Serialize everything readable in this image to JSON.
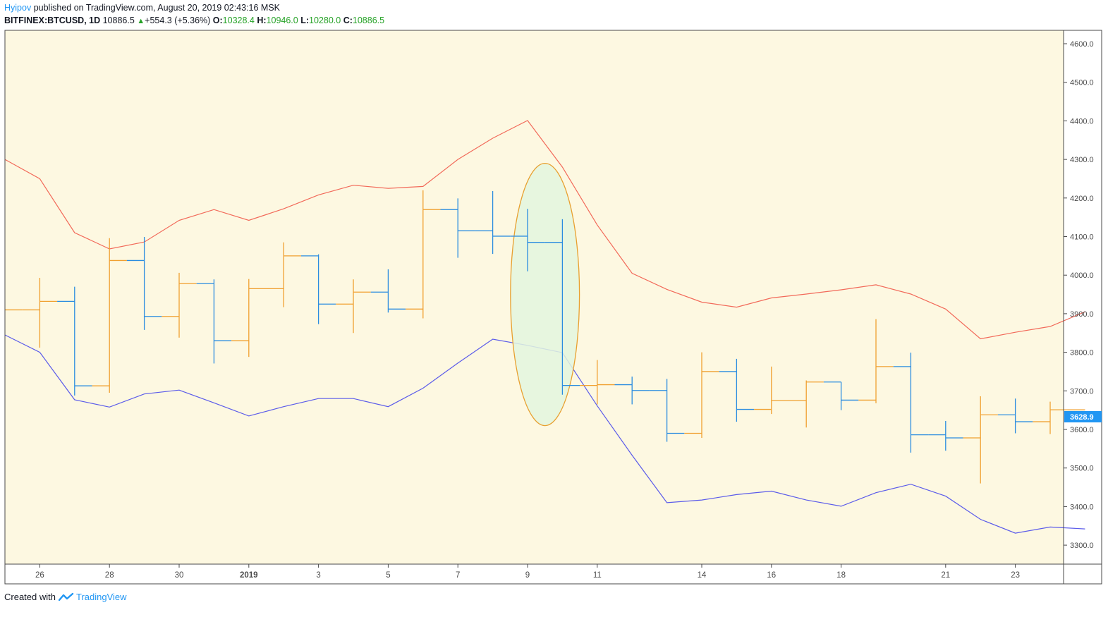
{
  "header": {
    "author": "Hyipov",
    "published": "published on TradingView.com, August 20, 2019 02:43:16 MSK",
    "symbol": "BITFINEX:BTCUSD, 1D",
    "last": "10886.5",
    "change": "+554.3 (+5.36%)",
    "o_label": "O:",
    "o_value": "10328.4",
    "h_label": "H:",
    "h_value": "10946.0",
    "l_label": "L:",
    "l_value": "10280.0",
    "c_label": "C:",
    "c_value": "10886.5"
  },
  "footer": {
    "created_with": "Created with",
    "brand": "TradingView"
  },
  "price_label": "3628.9",
  "colors": {
    "background": "#fdf8e1",
    "up": "#f0a030",
    "down": "#2a8ce0",
    "upper_band": "#f26a5a",
    "lower_band": "#5b5bea",
    "highlight_fill": "#e3f6de",
    "highlight_stroke": "#e8a030",
    "price_label_bg": "#2196f3"
  },
  "chart_data": {
    "type": "ohlc",
    "ylim": [
      3230,
      4640
    ],
    "y_ticks": [
      "4600.0",
      "4500.0",
      "4400.0",
      "4300.0",
      "4200.0",
      "4100.0",
      "4000.0",
      "3900.0",
      "3800.0",
      "3700.0",
      "3600.0",
      "3500.0",
      "3400.0",
      "3300.0"
    ],
    "x_ticks": [
      {
        "i": 1,
        "label": "26"
      },
      {
        "i": 3,
        "label": "28"
      },
      {
        "i": 5,
        "label": "30"
      },
      {
        "i": 7,
        "label": "2019"
      },
      {
        "i": 9,
        "label": "3"
      },
      {
        "i": 11,
        "label": "5"
      },
      {
        "i": 13,
        "label": "7"
      },
      {
        "i": 15,
        "label": "9"
      },
      {
        "i": 17,
        "label": "11"
      },
      {
        "i": 20,
        "label": "14"
      },
      {
        "i": 22,
        "label": "16"
      },
      {
        "i": 24,
        "label": "18"
      },
      {
        "i": 27,
        "label": "21"
      },
      {
        "i": 29,
        "label": "23"
      }
    ],
    "bars": [
      {
        "o": 3910,
        "h": 3910,
        "l": 3910,
        "c": 3910
      },
      {
        "o": 3910,
        "h": 3993,
        "l": 3812,
        "c": 3932
      },
      {
        "o": 3932,
        "h": 3970,
        "l": 3688,
        "c": 3713
      },
      {
        "o": 3713,
        "h": 4096,
        "l": 3695,
        "c": 4038
      },
      {
        "o": 4038,
        "h": 4099,
        "l": 3858,
        "c": 3893
      },
      {
        "o": 3893,
        "h": 4006,
        "l": 3838,
        "c": 3978
      },
      {
        "o": 3978,
        "h": 3989,
        "l": 3771,
        "c": 3830
      },
      {
        "o": 3830,
        "h": 3990,
        "l": 3788,
        "c": 3965
      },
      {
        "o": 3965,
        "h": 4085,
        "l": 3917,
        "c": 4050
      },
      {
        "o": 4050,
        "h": 4054,
        "l": 3873,
        "c": 3925
      },
      {
        "o": 3925,
        "h": 3989,
        "l": 3850,
        "c": 3956
      },
      {
        "o": 3956,
        "h": 4015,
        "l": 3903,
        "c": 3912
      },
      {
        "o": 3912,
        "h": 4220,
        "l": 3888,
        "c": 4170
      },
      {
        "o": 4170,
        "h": 4199,
        "l": 4045,
        "c": 4115
      },
      {
        "o": 4115,
        "h": 4218,
        "l": 4055,
        "c": 4101
      },
      {
        "o": 4101,
        "h": 4172,
        "l": 4010,
        "c": 4085
      },
      {
        "o": 4085,
        "h": 4145,
        "l": 3690,
        "c": 3714
      },
      {
        "o": 3714,
        "h": 3780,
        "l": 3665,
        "c": 3716
      },
      {
        "o": 3716,
        "h": 3737,
        "l": 3665,
        "c": 3701
      },
      {
        "o": 3701,
        "h": 3731,
        "l": 3568,
        "c": 3590
      },
      {
        "o": 3590,
        "h": 3800,
        "l": 3578,
        "c": 3750
      },
      {
        "o": 3750,
        "h": 3783,
        "l": 3620,
        "c": 3652
      },
      {
        "o": 3652,
        "h": 3763,
        "l": 3640,
        "c": 3675
      },
      {
        "o": 3675,
        "h": 3727,
        "l": 3605,
        "c": 3723
      },
      {
        "o": 3723,
        "h": 3723,
        "l": 3650,
        "c": 3676
      },
      {
        "o": 3676,
        "h": 3886,
        "l": 3668,
        "c": 3763
      },
      {
        "o": 3763,
        "h": 3799,
        "l": 3540,
        "c": 3586
      },
      {
        "o": 3586,
        "h": 3622,
        "l": 3545,
        "c": 3578
      },
      {
        "o": 3578,
        "h": 3686,
        "l": 3460,
        "c": 3638
      },
      {
        "o": 3638,
        "h": 3680,
        "l": 3590,
        "c": 3620
      },
      {
        "o": 3620,
        "h": 3672,
        "l": 3588,
        "c": 3651
      },
      {
        "o": 3651,
        "h": 3651,
        "l": 3651,
        "c": 3651
      }
    ],
    "upper_band": [
      4300,
      4250,
      4110,
      4068,
      4086,
      4142,
      4170,
      4142,
      4172,
      4208,
      4233,
      4225,
      4230,
      4300,
      4355,
      4401,
      4280,
      4130,
      4005,
      3963,
      3930,
      3917,
      3941,
      3951,
      3962,
      3975,
      3951,
      3912,
      3835,
      3852,
      3867,
      3905
    ],
    "lower_band": [
      3845,
      3800,
      3677,
      3658,
      3692,
      3702,
      3669,
      3635,
      3659,
      3680,
      3680,
      3659,
      3707,
      3772,
      3834,
      3818,
      3799,
      3661,
      3533,
      3410,
      3417,
      3431,
      3440,
      3417,
      3401,
      3436,
      3458,
      3427,
      3367,
      3331,
      3347,
      3342
    ],
    "highlight": {
      "cx": 15.5,
      "cy": 3950,
      "rx": 0.99,
      "ry": 340
    }
  }
}
